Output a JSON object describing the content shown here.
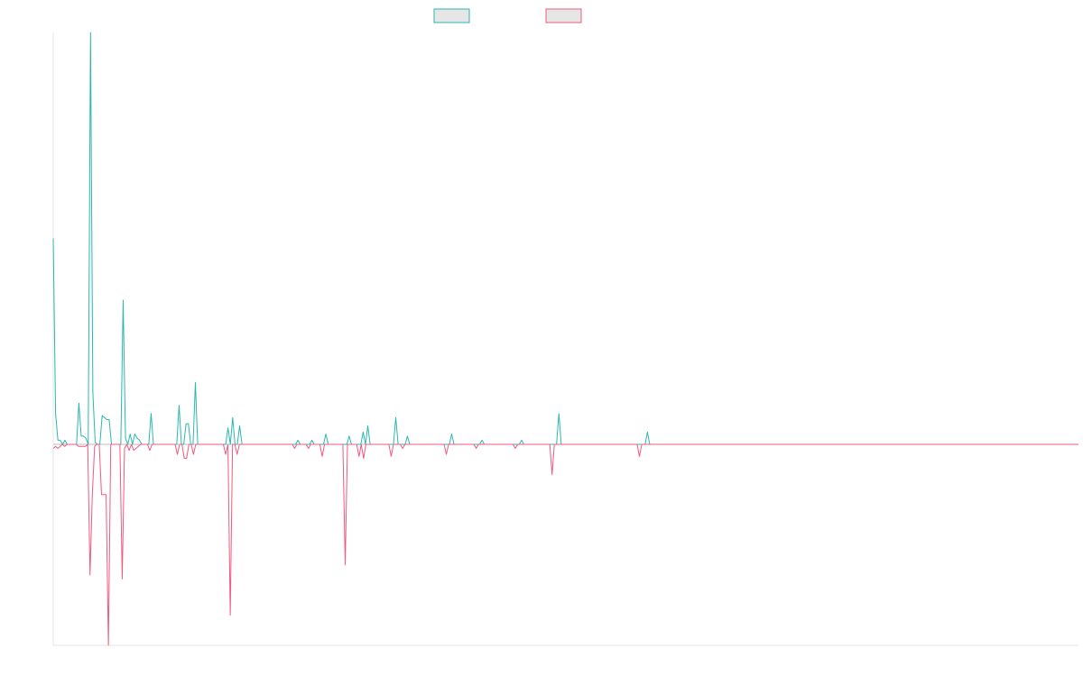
{
  "chart_data": {
    "type": "line",
    "title": "",
    "xlabel": "",
    "ylabel": "",
    "grid": false,
    "legend_position": "top-center",
    "ylim": [
      -1.0,
      2.0
    ],
    "series": [
      {
        "color": "#2ab7ae",
        "values": [
          1.0,
          0.15,
          0.02,
          0.02,
          0.0,
          0.02,
          0.0,
          0.0,
          0.0,
          0.0,
          0.0,
          0.2,
          0.04,
          0.04,
          0.03,
          0.0,
          2.0,
          0.25,
          0.01,
          0.0,
          0.0,
          0.14,
          0.13,
          0.12,
          0.12,
          0.0,
          0.0,
          0.0,
          0.0,
          0.0,
          0.7,
          0.03,
          0.0,
          0.05,
          0.0,
          0.05,
          0.03,
          0.02,
          0.0,
          0.0,
          0.0,
          0.0,
          0.15,
          0.0,
          0.0,
          0.0,
          0.0,
          0.0,
          0.0,
          0.0,
          0.0,
          0.0,
          0.0,
          0.0,
          0.19,
          0.0,
          0.0,
          0.1,
          0.1,
          0.0,
          0.0,
          0.3,
          0.0,
          0.0,
          0.0,
          0.0,
          0.0,
          0.0,
          0.0,
          0.0,
          0.0,
          0.0,
          0.0,
          0.0,
          0.0,
          0.08,
          0.0,
          0.13,
          0.0,
          0.0,
          0.09,
          0.0,
          0.0,
          0.0,
          0.0,
          0.0,
          0.0,
          0.0,
          0.0,
          0.0,
          0.0,
          0.0,
          0.0,
          0.0,
          0.0,
          0.0,
          0.0,
          0.0,
          0.0,
          0.0,
          0.0,
          0.0,
          0.0,
          0.0,
          0.0,
          0.02,
          0.0,
          0.0,
          0.0,
          0.0,
          0.0,
          0.02,
          0.0,
          0.0,
          0.0,
          0.0,
          0.0,
          0.05,
          0.0,
          0.0,
          0.0,
          0.0,
          0.0,
          0.0,
          0.0,
          0.0,
          0.0,
          0.04,
          0.0,
          0.0,
          0.0,
          0.0,
          0.0,
          0.06,
          0.0,
          0.09,
          0.0,
          0.0,
          0.0,
          0.0,
          0.0,
          0.0,
          0.0,
          0.0,
          0.0,
          0.0,
          0.0,
          0.13,
          0.0,
          0.0,
          0.0,
          0.0,
          0.04,
          0.0,
          0.0,
          0.0,
          0.0,
          0.0,
          0.0,
          0.0,
          0.0,
          0.0,
          0.0,
          0.0,
          0.0,
          0.0,
          0.0,
          0.0,
          0.0,
          0.0,
          0.0,
          0.05,
          0.0,
          0.0,
          0.0,
          0.0,
          0.0,
          0.0,
          0.0,
          0.0,
          0.0,
          0.0,
          0.0,
          0.0,
          0.02,
          0.0,
          0.0,
          0.0,
          0.0,
          0.0,
          0.0,
          0.0,
          0.0,
          0.0,
          0.0,
          0.0,
          0.0,
          0.0,
          0.0,
          0.0,
          0.0,
          0.02,
          0.0,
          0.0,
          0.0,
          0.0,
          0.0,
          0.0,
          0.0,
          0.0,
          0.0,
          0.0,
          0.0,
          0.0,
          0.0,
          0.0,
          0.0,
          0.15,
          0.0,
          0.0,
          0.0,
          0.0,
          0.0,
          0.0,
          0.0,
          0.0,
          0.0,
          0.0,
          0.0,
          0.0,
          0.0,
          0.0,
          0.0,
          0.0,
          0.0,
          0.0,
          0.0,
          0.0,
          0.0,
          0.0,
          0.0,
          0.0,
          0.0,
          0.0,
          0.0,
          0.0,
          0.0,
          0.0,
          0.0,
          0.0,
          0.0,
          0.0,
          0.0,
          0.0,
          0.0,
          0.06,
          0.0,
          0.0,
          0.0,
          0.0,
          0.0,
          0.0,
          0.0,
          0.0,
          0.0,
          0.0,
          0.0,
          0.0,
          0.0,
          0.0,
          0.0,
          0.0,
          0.0,
          0.0,
          0.0,
          0.0,
          0.0,
          0.0,
          0.0,
          0.0,
          0.0,
          0.0,
          0.0,
          0.0,
          0.0,
          0.0,
          0.0,
          0.0,
          0.0,
          0.0,
          0.0,
          0.0,
          0.0,
          0.0,
          0.0,
          0.0,
          0.0,
          0.0,
          0.0,
          0.0,
          0.0,
          0.0,
          0.0,
          0.0,
          0.0,
          0.0,
          0.0,
          0.0,
          0.0,
          0.0,
          0.0,
          0.0,
          0.0,
          0.0,
          0.0,
          0.0,
          0.0,
          0.0,
          0.0,
          0.0,
          0.0,
          0.0,
          0.0,
          0.0,
          0.0,
          0.0,
          0.0,
          0.0,
          0.0,
          0.0,
          0.0,
          0.0,
          0.0,
          0.0,
          0.0,
          0.0,
          0.0,
          0.0,
          0.0,
          0.0,
          0.0,
          0.0,
          0.0,
          0.0,
          0.0,
          0.0,
          0.0,
          0.0,
          0.0,
          0.0,
          0.0,
          0.0,
          0.0,
          0.0,
          0.0,
          0.0,
          0.0,
          0.0,
          0.0,
          0.0,
          0.0,
          0.0,
          0.0,
          0.0,
          0.0,
          0.0,
          0.0,
          0.0,
          0.0,
          0.0,
          0.0,
          0.0,
          0.0,
          0.0,
          0.0,
          0.0,
          0.0,
          0.0,
          0.0,
          0.0,
          0.0,
          0.0,
          0.0,
          0.0,
          0.0,
          0.0,
          0.0,
          0.0,
          0.0,
          0.0,
          0.0,
          0.0,
          0.0,
          0.0,
          0.0,
          0.0,
          0.0,
          0.0,
          0.0,
          0.0,
          0.0,
          0.0,
          0.0,
          0.0,
          0.0,
          0.0,
          0.0,
          0.0,
          0.0,
          0.0,
          0.0,
          0.0,
          0.0,
          0.0,
          0.0,
          0.0,
          0.0,
          0.0,
          0.0,
          0.0,
          0.0,
          0.0,
          0.0,
          0.0,
          0.0,
          0.0,
          0.0,
          0.0,
          0.0,
          0.0,
          0.0,
          0.0,
          0.0,
          0.0,
          0.0,
          0.0,
          0.0,
          0.0,
          0.0,
          0.0,
          0.0
        ]
      },
      {
        "color": "#f05a7e",
        "values": [
          -0.02,
          -0.01,
          -0.02,
          -0.01,
          0.0,
          -0.01,
          0.0,
          0.0,
          0.0,
          0.0,
          0.0,
          -0.01,
          -0.01,
          -0.01,
          -0.01,
          0.0,
          -0.65,
          -0.25,
          -0.01,
          0.0,
          0.0,
          -0.25,
          -0.25,
          -0.25,
          -1.0,
          0.0,
          0.0,
          0.0,
          0.0,
          0.0,
          -0.67,
          -0.02,
          0.0,
          -0.03,
          0.0,
          -0.03,
          -0.02,
          -0.01,
          0.0,
          0.0,
          0.0,
          0.0,
          -0.03,
          0.0,
          0.0,
          0.0,
          0.0,
          0.0,
          0.0,
          0.0,
          0.0,
          0.0,
          0.0,
          0.0,
          -0.05,
          0.0,
          0.0,
          -0.07,
          -0.07,
          0.0,
          0.0,
          -0.05,
          0.0,
          0.0,
          0.0,
          0.0,
          0.0,
          0.0,
          0.0,
          0.0,
          0.0,
          0.0,
          0.0,
          0.0,
          0.0,
          -0.05,
          0.0,
          -0.85,
          0.0,
          0.0,
          -0.05,
          0.0,
          0.0,
          0.0,
          0.0,
          0.0,
          0.0,
          0.0,
          0.0,
          0.0,
          0.0,
          0.0,
          0.0,
          0.0,
          0.0,
          0.0,
          0.0,
          0.0,
          0.0,
          0.0,
          0.0,
          0.0,
          0.0,
          0.0,
          0.0,
          -0.02,
          0.0,
          0.0,
          0.0,
          0.0,
          0.0,
          -0.02,
          0.0,
          0.0,
          0.0,
          0.0,
          0.0,
          -0.06,
          0.0,
          0.0,
          0.0,
          0.0,
          0.0,
          0.0,
          0.0,
          0.0,
          0.0,
          -0.6,
          0.0,
          0.0,
          0.0,
          0.0,
          0.0,
          -0.06,
          0.0,
          -0.07,
          0.0,
          0.0,
          0.0,
          0.0,
          0.0,
          0.0,
          0.0,
          0.0,
          0.0,
          0.0,
          0.0,
          -0.06,
          0.0,
          0.0,
          0.0,
          0.0,
          -0.02,
          0.0,
          0.0,
          0.0,
          0.0,
          0.0,
          0.0,
          0.0,
          0.0,
          0.0,
          0.0,
          0.0,
          0.0,
          0.0,
          0.0,
          0.0,
          0.0,
          0.0,
          0.0,
          -0.05,
          0.0,
          0.0,
          0.0,
          0.0,
          0.0,
          0.0,
          0.0,
          0.0,
          0.0,
          0.0,
          0.0,
          0.0,
          -0.02,
          0.0,
          0.0,
          0.0,
          0.0,
          0.0,
          0.0,
          0.0,
          0.0,
          0.0,
          0.0,
          0.0,
          0.0,
          0.0,
          0.0,
          0.0,
          0.0,
          -0.02,
          0.0,
          0.0,
          0.0,
          0.0,
          0.0,
          0.0,
          0.0,
          0.0,
          0.0,
          0.0,
          0.0,
          0.0,
          0.0,
          0.0,
          0.0,
          -0.15,
          0.0,
          0.0,
          0.0,
          0.0,
          0.0,
          0.0,
          0.0,
          0.0,
          0.0,
          0.0,
          0.0,
          0.0,
          0.0,
          0.0,
          0.0,
          0.0,
          0.0,
          0.0,
          0.0,
          0.0,
          0.0,
          0.0,
          0.0,
          0.0,
          0.0,
          0.0,
          0.0,
          0.0,
          0.0,
          0.0,
          0.0,
          0.0,
          0.0,
          0.0,
          0.0,
          0.0,
          0.0,
          -0.06,
          0.0,
          0.0,
          0.0,
          0.0,
          0.0,
          0.0,
          0.0,
          0.0,
          0.0,
          0.0,
          0.0,
          0.0,
          0.0,
          0.0,
          0.0,
          0.0,
          0.0,
          0.0,
          0.0,
          0.0,
          0.0,
          0.0,
          0.0,
          0.0,
          0.0,
          0.0,
          0.0,
          0.0,
          0.0,
          0.0,
          0.0,
          0.0,
          0.0,
          0.0,
          0.0,
          0.0,
          0.0,
          0.0,
          0.0,
          0.0,
          0.0,
          0.0,
          0.0,
          0.0,
          0.0,
          0.0,
          0.0,
          0.0,
          0.0,
          0.0,
          0.0,
          0.0,
          0.0,
          0.0,
          0.0,
          0.0,
          0.0,
          0.0,
          0.0,
          0.0,
          0.0,
          0.0,
          0.0,
          0.0,
          0.0,
          0.0,
          0.0,
          0.0,
          0.0,
          0.0,
          0.0,
          0.0,
          0.0,
          0.0,
          0.0,
          0.0,
          0.0,
          0.0,
          0.0,
          0.0,
          0.0,
          0.0,
          0.0,
          0.0,
          0.0,
          0.0,
          0.0,
          0.0,
          0.0,
          0.0,
          0.0,
          0.0,
          0.0,
          0.0,
          0.0,
          0.0,
          0.0,
          0.0,
          0.0,
          0.0,
          0.0,
          0.0,
          0.0,
          0.0,
          0.0,
          0.0,
          0.0,
          0.0,
          0.0,
          0.0,
          0.0,
          0.0,
          0.0,
          0.0,
          0.0,
          0.0,
          0.0,
          0.0,
          0.0,
          0.0,
          0.0,
          0.0,
          0.0,
          0.0,
          0.0,
          0.0,
          0.0,
          0.0,
          0.0,
          0.0,
          0.0,
          0.0,
          0.0,
          0.0,
          0.0,
          0.0,
          0.0,
          0.0,
          0.0,
          0.0,
          0.0,
          0.0,
          0.0,
          0.0,
          0.0,
          0.0,
          0.0,
          0.0,
          0.0,
          0.0,
          0.0,
          0.0,
          0.0,
          0.0,
          0.0,
          0.0,
          0.0,
          0.0,
          0.0,
          0.0,
          0.0,
          0.0,
          0.0,
          0.0,
          0.0,
          0.0,
          0.0,
          0.0,
          0.0,
          0.0,
          0.0,
          0.0,
          0.0,
          0.0,
          0.0,
          0.0,
          0.0,
          0.0,
          0.0,
          0.0,
          0.0,
          0.0,
          0.0,
          0.0,
          0.0,
          0.0,
          0.0,
          0.0,
          0.0,
          0.0,
          0.0
        ]
      }
    ]
  }
}
